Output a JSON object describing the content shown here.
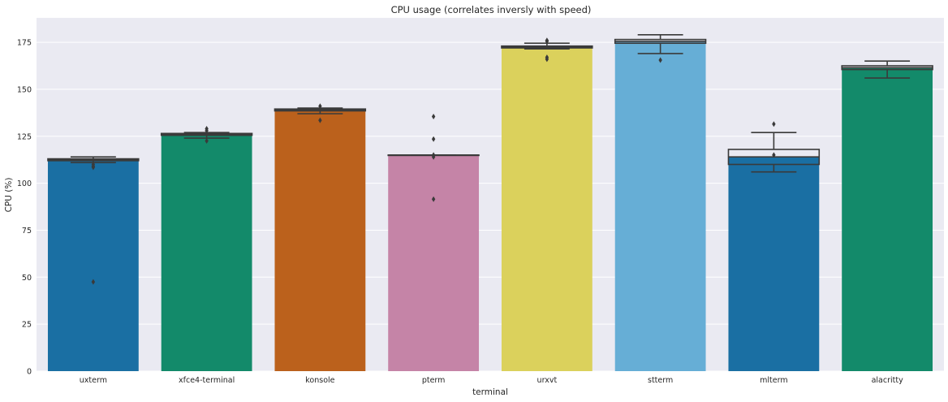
{
  "chart_data": {
    "type": "bar",
    "title": "CPU usage (correlates inversly with speed)",
    "xlabel": "terminal",
    "ylabel": "CPU (%)",
    "ylim": [
      0,
      188
    ],
    "yticks": [
      0,
      25,
      50,
      75,
      100,
      125,
      150,
      175
    ],
    "grid": true,
    "categories": [
      "uxterm",
      "xfce4-terminal",
      "konsole",
      "pterm",
      "urxvt",
      "stterm",
      "mlterm",
      "alacritty"
    ],
    "values": [
      112.5,
      126,
      139,
      115,
      172.5,
      175.5,
      114,
      161.5
    ],
    "colors": [
      "#1a6fa3",
      "#138a6a",
      "#bb611c",
      "#c584a7",
      "#dbd15c",
      "#66aed6",
      "#1a6fa3",
      "#138a6a"
    ],
    "box_overlay": [
      {
        "q1": 112,
        "median": 112.5,
        "q3": 113,
        "whisker_low": 111,
        "whisker_high": 114,
        "outliers": [
          108.5,
          109,
          110,
          47.5
        ]
      },
      {
        "q1": 125.5,
        "median": 126,
        "q3": 126.5,
        "whisker_low": 124,
        "whisker_high": 127,
        "outliers": [
          122.5,
          128,
          129
        ]
      },
      {
        "q1": 138.5,
        "median": 139,
        "q3": 139.5,
        "whisker_low": 137,
        "whisker_high": 140,
        "outliers": [
          133.5,
          141
        ]
      },
      {
        "q1": 115,
        "median": 115,
        "q3": 115,
        "whisker_low": 115,
        "whisker_high": 115,
        "outliers": [
          135.5,
          123.5,
          115,
          114,
          91.5
        ]
      },
      {
        "q1": 172,
        "median": 172.5,
        "q3": 173,
        "whisker_low": 171.5,
        "whisker_high": 174.5,
        "outliers": [
          175.5,
          176,
          167,
          166
        ]
      },
      {
        "q1": 174.5,
        "median": 175.5,
        "q3": 176.5,
        "whisker_low": 169,
        "whisker_high": 179,
        "outliers": [
          165.5
        ]
      },
      {
        "q1": 110,
        "median": 114,
        "q3": 118,
        "whisker_low": 106,
        "whisker_high": 127,
        "outliers": [
          131.5,
          115
        ]
      },
      {
        "q1": 160.5,
        "median": 161.5,
        "q3": 162.5,
        "whisker_low": 156,
        "whisker_high": 165,
        "outliers": []
      }
    ]
  }
}
